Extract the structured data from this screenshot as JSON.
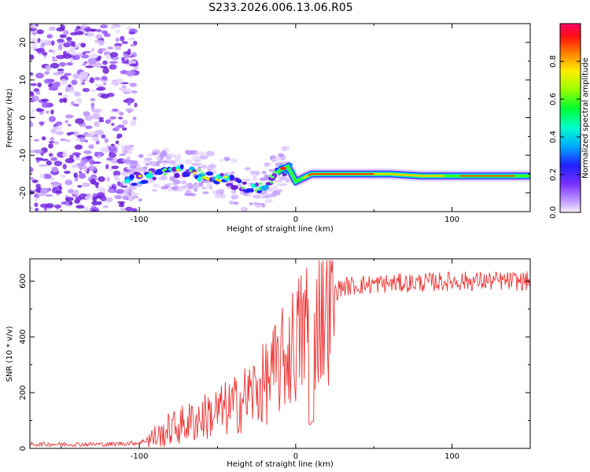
{
  "title": "S233.2026.006.13.06.R05",
  "chart_data": [
    {
      "type": "heatmap",
      "xlabel": "Height of straight line (km)",
      "ylabel": "Frequency (Hz)",
      "xlim": [
        -170,
        150
      ],
      "ylim": [
        -25,
        25
      ],
      "xticks": [
        "-100",
        "0",
        "100"
      ],
      "yticks": [
        "20",
        "10",
        "0",
        "-10",
        "-20"
      ],
      "ridge_frequency_profile": {
        "x": [
          -110,
          -100,
          -90,
          -80,
          -70,
          -60,
          -50,
          -40,
          -30,
          -20,
          -10,
          -5,
          0,
          10,
          20,
          40,
          60,
          80,
          100,
          120,
          150
        ],
        "y": [
          -17,
          -16,
          -15,
          -14,
          -14.5,
          -15,
          -16,
          -17,
          -19,
          -18,
          -14,
          -13,
          -17,
          -15,
          -15,
          -15,
          -15,
          -15.5,
          -15.5,
          -15.5,
          -15.5
        ]
      },
      "colorbar": {
        "label": "Normalized spectral amplitude",
        "ticks": [
          "0.0",
          "0.2",
          "0.4",
          "0.6",
          "0.8"
        ],
        "range": [
          0,
          1
        ]
      }
    },
    {
      "type": "line",
      "xlabel": "Height of straight line (km)",
      "ylabel": "SNR (10 * v/v)",
      "xlim": [
        -170,
        150
      ],
      "ylim": [
        0,
        680
      ],
      "xticks": [
        "-100",
        "0",
        "100"
      ],
      "yticks": [
        "600",
        "400",
        "200",
        "0"
      ],
      "color": "#ee3333",
      "trend": {
        "x": [
          -170,
          -120,
          -100,
          -90,
          -80,
          -60,
          -40,
          -20,
          -10,
          0,
          10,
          20,
          30,
          50,
          80,
          100,
          120,
          150
        ],
        "y": [
          15,
          15,
          20,
          40,
          70,
          110,
          150,
          230,
          300,
          380,
          460,
          540,
          580,
          590,
          595,
          600,
          600,
          600
        ]
      }
    }
  ]
}
